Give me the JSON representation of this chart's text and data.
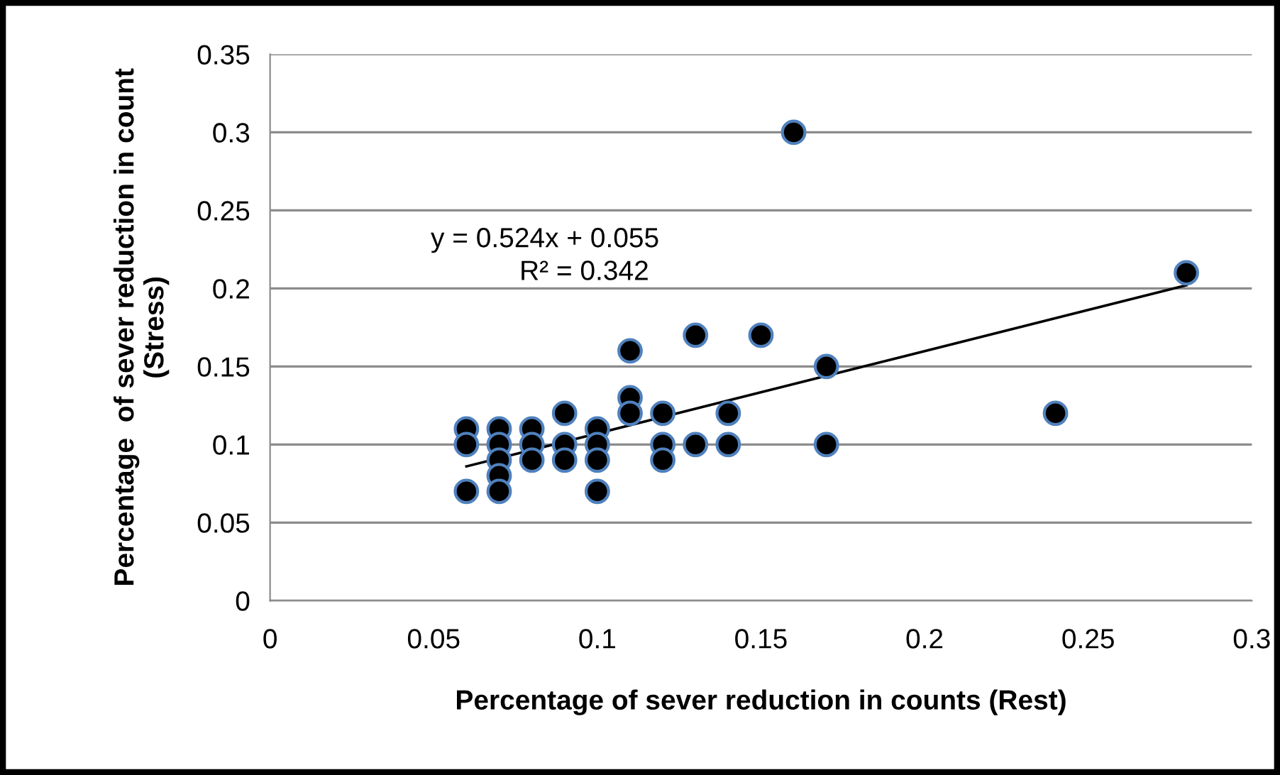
{
  "chart_data": {
    "type": "scatter",
    "xlabel": "Percentage of sever reduction in counts (Rest)",
    "ylabel": "Percentage  of sever reduction in count\n(Stress)",
    "annotations": [
      "y = 0.524x + 0.055",
      "R² = 0.342"
    ],
    "xlim": [
      0,
      0.3
    ],
    "xticks": [
      0,
      0.05,
      0.1,
      0.15,
      0.2,
      0.25,
      0.3
    ],
    "ylim": [
      0,
      0.35
    ],
    "yticks": [
      0,
      0.05,
      0.1,
      0.15,
      0.2,
      0.25,
      0.3,
      0.35
    ],
    "grid": "y",
    "legend": false,
    "series": [
      {
        "type": "scatter",
        "color": "#000000",
        "marker": "circle",
        "x": [
          0.06,
          0.06,
          0.06,
          0.07,
          0.07,
          0.07,
          0.07,
          0.07,
          0.08,
          0.08,
          0.08,
          0.09,
          0.09,
          0.09,
          0.1,
          0.1,
          0.1,
          0.1,
          0.11,
          0.11,
          0.11,
          0.12,
          0.12,
          0.12,
          0.13,
          0.13,
          0.14,
          0.14,
          0.15,
          0.16,
          0.17,
          0.17,
          0.24,
          0.28
        ],
        "values": [
          0.11,
          0.1,
          0.07,
          0.11,
          0.1,
          0.09,
          0.08,
          0.07,
          0.11,
          0.1,
          0.09,
          0.12,
          0.1,
          0.09,
          0.11,
          0.1,
          0.09,
          0.07,
          0.16,
          0.13,
          0.12,
          0.12,
          0.1,
          0.09,
          0.17,
          0.1,
          0.12,
          0.1,
          0.17,
          0.3,
          0.15,
          0.1,
          0.12,
          0.21
        ]
      },
      {
        "type": "line",
        "color": "#000000",
        "marker": "none",
        "line_style": "solid",
        "x": [
          0.06,
          0.28
        ],
        "values": [
          0.086,
          0.202
        ]
      }
    ]
  }
}
